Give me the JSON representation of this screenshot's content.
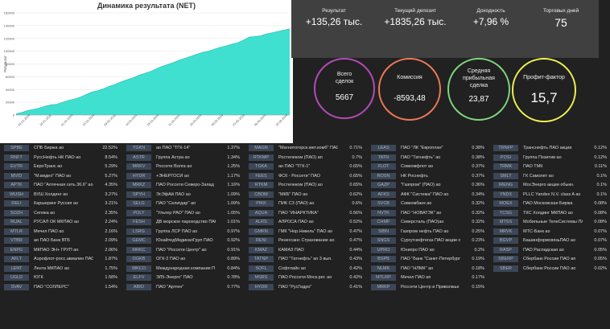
{
  "chart_data": {
    "type": "area",
    "title": "Динамика результата (NET)",
    "ylabel": "Результат",
    "ylim": [
      0,
      160000
    ],
    "y_ticks": [
      "0",
      "20000",
      "40000",
      "60000",
      "80000",
      "100000",
      "120000",
      "140000",
      "160000"
    ],
    "x_ticks": [
      "04.01.2024",
      "18.01.2024",
      "01.02.2024",
      "15.02.2024",
      "29.02.2024",
      "14.03.2024",
      "28.03.2024",
      "11.04.2024",
      "25.04.2024",
      "09.05.2024",
      "23.05.2024",
      "06.06.2024",
      "20.06.2024"
    ],
    "series": [
      {
        "color": "#40e0d0",
        "values": [
          2000,
          4000,
          7000,
          9000,
          11000,
          14000,
          16000,
          17000,
          20000,
          23000,
          25000,
          28000,
          32000,
          36000,
          38000,
          41000,
          45000,
          48000,
          52000,
          55000,
          58000,
          62000,
          65000,
          68000,
          72000,
          76000,
          79000,
          82000,
          86000,
          89000,
          92000,
          95000,
          98000,
          100000,
          103000,
          106000,
          108000,
          111000,
          113000,
          117000,
          122000,
          123000,
          124000,
          127000,
          129000,
          131000,
          133000,
          135000
        ]
      }
    ]
  },
  "stats": [
    {
      "label": "Результат",
      "value": "+135,26 тыс."
    },
    {
      "label": "Текущий депозит",
      "value": "+1835,26 тыс."
    },
    {
      "label": "Доходность",
      "value": "+7,96 %"
    },
    {
      "label": "Торговых дней",
      "value": "75"
    }
  ],
  "circles": [
    {
      "label": "Всего\nсделок",
      "value": "5667",
      "color": "#b44bb8"
    },
    {
      "label": "Комиссия",
      "value": "-8593,48",
      "color": "#f07856"
    },
    {
      "label": "Средняя\nприбыльная\nсделка",
      "value": "23,87",
      "color": "#7ed67e"
    },
    {
      "label": "Профит-фактор",
      "value": "15,7",
      "color": "#f0f050"
    }
  ],
  "columns": [
    [
      {
        "ticker": "SPBE",
        "name": "СПБ Биржа ао",
        "pct": "22.52%"
      },
      {
        "ticker": "RNFT",
        "name": "РуссНефть НК ПАО ао",
        "pct": "8.54%"
      },
      {
        "ticker": "EUTR",
        "name": "ЕвроТранс ао",
        "pct": "5.29%"
      },
      {
        "ticker": "MVID",
        "name": "\"М.видео\" ПАО ао",
        "pct": "5.27%"
      },
      {
        "ticker": "APTK",
        "name": "ПАО \"Аптечная сеть 36.6\" ао",
        "pct": "4.35%"
      },
      {
        "ticker": "WUSH",
        "name": "ВУШ Холдинг ао",
        "pct": "3.27%"
      },
      {
        "ticker": "DELI",
        "name": "Каршеринг Руссия ао",
        "pct": "3.21%"
      },
      {
        "ticker": "SOZH",
        "name": "Сегежа ао",
        "pct": "2.35%"
      },
      {
        "ticker": "RUAL",
        "name": "РУСАЛ ОК МКПАО ао",
        "pct": "2.24%"
      },
      {
        "ticker": "MTLR",
        "name": "Мечел ПАО ао",
        "pct": "2.16%"
      },
      {
        "ticker": "VTBR",
        "name": "ао ПАО Банк ВТБ",
        "pct": "2.09%"
      },
      {
        "ticker": "ENPG",
        "name": "МКПАО ЭН+ ГРУП ао",
        "pct": "2.06%"
      },
      {
        "ticker": "AFLT",
        "name": "Аэрофлот-росс.авиалин ПАО",
        "pct": "1.87%"
      },
      {
        "ticker": "LENT",
        "name": "Лента МКПАО ао",
        "pct": "1.75%"
      },
      {
        "ticker": "UGLD",
        "name": "ЮГК",
        "pct": "1.58%"
      },
      {
        "ticker": "SVAV",
        "name": "ПАО \"СОЛЛЕРС\"",
        "pct": "1.54%"
      }
    ],
    [
      {
        "ticker": "TGKN",
        "name": "ао ПАО \"ТГК-14\"",
        "pct": "1.37%"
      },
      {
        "ticker": "ASTR",
        "name": "Группа Астра ао",
        "pct": "1.34%"
      },
      {
        "ticker": "MRKV",
        "name": "Россети Волга ао",
        "pct": "1.25%"
      },
      {
        "ticker": "HYDR",
        "name": "+ЭНЕРГОСИ ао",
        "pct": "1.17%"
      },
      {
        "ticker": "MRKZ",
        "name": "ПАО Россети Северо-Запад",
        "pct": "1.16%"
      },
      {
        "ticker": "SPYH",
        "name": "ЭсЭфАй ПАО ао",
        "pct": "1.09%"
      },
      {
        "ticker": "SELG",
        "name": "ПАО \"Селигдар\" ао",
        "pct": "1.09%"
      },
      {
        "ticker": "POLY",
        "name": "\"Ультер РАО\" ПАО ао",
        "pct": "1.05%"
      },
      {
        "ticker": "FESH",
        "name": "ДВ морское пароходство ПАО",
        "pct": "1.01%"
      },
      {
        "ticker": "LSRG",
        "name": "Группа ЛСР ПАО ао",
        "pct": "0.97%"
      },
      {
        "ticker": "GEMC",
        "name": "ЮнайтедМедикалГруп ПАО",
        "pct": "0.92%"
      },
      {
        "ticker": "MRKC",
        "name": "ПАО \"Россети Центр\" ао",
        "pct": "0.91%"
      },
      {
        "ticker": "OGKB",
        "name": "ОГК-2 ПАО ао",
        "pct": "0.89%"
      },
      {
        "ticker": "WKCO",
        "name": "Международная компания П",
        "pct": "0.84%"
      },
      {
        "ticker": "ELFV",
        "name": "ЭЛ5-Энерго\" ПАО",
        "pct": "0.78%"
      },
      {
        "ticker": "ABIO",
        "name": "ПАО \"Артген\"",
        "pct": "0.77%"
      }
    ],
    [
      {
        "ticker": "MAGN",
        "name": "\"Магнитогорск.мет.комб\" ПАО",
        "pct": "0.71%"
      },
      {
        "ticker": "RTKMP",
        "name": "Ростелеком (ПАО) ап",
        "pct": "0.7%"
      },
      {
        "ticker": "TGKA",
        "name": "ао ПАО \"ТГК-1\"",
        "pct": "0.65%"
      },
      {
        "ticker": "FEES",
        "name": "ФСК - Россети\" ПАО",
        "pct": "0.65%"
      },
      {
        "ticker": "RTKM",
        "name": "Ростелеком (ПАО) ао",
        "pct": "0.65%"
      },
      {
        "ticker": "CBOM",
        "name": "\"МКБ\" ПАО ао",
        "pct": "0.62%"
      },
      {
        "ticker": "PIKK",
        "name": "ПИК СЗ (ПАО) ао",
        "pct": "0.6%"
      },
      {
        "ticker": "AQUA",
        "name": "ПАО \"ИНАРКТИКА\"",
        "pct": "0.56%"
      },
      {
        "ticker": "ALRS",
        "name": "АЛРОСА ПАО ао",
        "pct": "0.52%"
      },
      {
        "ticker": "GMKN",
        "name": "ГМК \"Нор.Никель\" ПАО ао",
        "pct": "0.47%"
      },
      {
        "ticker": "RENI",
        "name": "Ренессанс Страхование ао",
        "pct": "0.47%"
      },
      {
        "ticker": "KMAZ",
        "name": "КАМАЗ ПАО",
        "pct": "0.44%"
      },
      {
        "ticker": "TATNP",
        "name": "ПАО \"Татнефть\" ап 3 вып.",
        "pct": "0.43%"
      },
      {
        "ticker": "SOFL",
        "name": "Софтлайн ао",
        "pct": "0.42%"
      },
      {
        "ticker": "MSRS",
        "name": "ПАО Россети Моск.рег. ао",
        "pct": "0.42%"
      },
      {
        "ticker": "HYDR",
        "name": "ПАО \"РусГидро\"",
        "pct": "0.41%"
      }
    ],
    [
      {
        "ticker": "LEAS",
        "name": "ПАО \"ЛК \"Европлан\"",
        "pct": "0.38%"
      },
      {
        "ticker": "TATN",
        "name": "ПАО \"Татнефть\" ао",
        "pct": "0.38%"
      },
      {
        "ticker": "FLOT",
        "name": "Совкомфлот ао",
        "pct": "0.37%"
      },
      {
        "ticker": "ROSN",
        "name": "НК Роснефть",
        "pct": "0.37%"
      },
      {
        "ticker": "GAZP",
        "name": "\"Газпром\" (ПАО) ао",
        "pct": "0.36%"
      },
      {
        "ticker": "AFKS",
        "name": "АФК \"Система\" ПАО ао",
        "pct": "0.34%"
      },
      {
        "ticker": "SVCB",
        "name": "Совкомбанк ао",
        "pct": "0.32%"
      },
      {
        "ticker": "NVTK",
        "name": "ПАО \"НОВАТЭК\" ао",
        "pct": "0.32%"
      },
      {
        "ticker": "CHMF",
        "name": "Северсталь (ПАО)ао",
        "pct": "0.32%"
      },
      {
        "ticker": "SIBN",
        "name": "Газпром нефть ПАО ао",
        "pct": "0.25%"
      },
      {
        "ticker": "SNGS",
        "name": "Сургутнефтегаз ПАО акции о",
        "pct": "0.23%"
      },
      {
        "ticker": "UPRO",
        "name": "Юнипро ПАО ао",
        "pct": "0.2%"
      },
      {
        "ticker": "BSPB",
        "name": "ПАО \"Банк \"Санкт-Петербург",
        "pct": "0.19%"
      },
      {
        "ticker": "NLMK",
        "name": "ПАО \"НЛМК\" ао",
        "pct": "0.18%"
      },
      {
        "ticker": "MTLRP",
        "name": "Мечел ПАО ап",
        "pct": "0.17%"
      },
      {
        "ticker": "MRKP",
        "name": "Россети Центр и Приволжье",
        "pct": "0.15%"
      }
    ],
    [
      {
        "ticker": "TRNFP",
        "name": "Транснефть ПАО акции",
        "pct": "0.12%"
      },
      {
        "ticker": "POSI",
        "name": "Группа Позитив ао",
        "pct": "0.12%"
      },
      {
        "ticker": "TRMK",
        "name": "ПАО ТМК",
        "pct": "0.11%"
      },
      {
        "ticker": "SMLT",
        "name": "ГК Самолет ао",
        "pct": "0.1%"
      },
      {
        "ticker": "IRENG",
        "name": "МосЭнерго акции обыкн.",
        "pct": "0.1%"
      },
      {
        "ticker": "YNDX",
        "name": "PLLC Yandex N.V. class A ао",
        "pct": "0.1%"
      },
      {
        "ticker": "MOEX",
        "name": "ПАО Московская Биржа",
        "pct": "0.08%"
      },
      {
        "ticker": "TCSG",
        "name": "ТКС Холдинг МКПАО ао",
        "pct": "0.08%"
      },
      {
        "ticker": "MTSS",
        "name": "Мобильные ТелеСистемы ПАО",
        "pct": "0.08%"
      },
      {
        "ticker": "MRVK",
        "name": "МТС-Банк ао",
        "pct": "0.07%"
      },
      {
        "ticker": "BGVP",
        "name": "БашинформсвязьПАО ао",
        "pct": "0.07%"
      },
      {
        "ticker": "RASP",
        "name": "ПАО Распадская ао",
        "pct": "0.05%"
      },
      {
        "ticker": "SBERP",
        "name": "Сбербанк России ПАО ап",
        "pct": "0.05%"
      },
      {
        "ticker": "SBER",
        "name": "Сбербанк России ПАО ао",
        "pct": "0.02%"
      }
    ]
  ]
}
